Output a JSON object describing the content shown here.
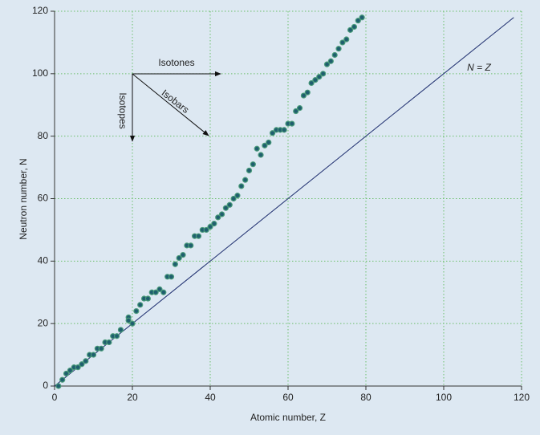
{
  "chart_data": {
    "type": "scatter",
    "x_label": "Atomic number, Z",
    "y_label": "Neutron number, N",
    "x": [
      1,
      2,
      3,
      4,
      5,
      6,
      7,
      8,
      9,
      10,
      11,
      12,
      13,
      14,
      15,
      16,
      17,
      19,
      19,
      20,
      21,
      22,
      23,
      24,
      25,
      26,
      27,
      28,
      29,
      30,
      31,
      32,
      33,
      34,
      35,
      36,
      37,
      38,
      39,
      40,
      41,
      42,
      43,
      44,
      45,
      46,
      47,
      48,
      49,
      50,
      51,
      52,
      53,
      54,
      55,
      56,
      57,
      58,
      59,
      60,
      61,
      62,
      63,
      64,
      65,
      66,
      67,
      68,
      69,
      70,
      71,
      72,
      73,
      74,
      75,
      76,
      77,
      78,
      79
    ],
    "y": [
      0,
      2,
      4,
      5,
      6,
      6,
      7,
      8,
      10,
      10,
      12,
      12,
      14,
      14,
      16,
      16,
      18,
      22,
      21,
      20,
      24,
      26,
      28,
      28,
      30,
      30,
      31,
      30,
      35,
      35,
      39,
      41,
      42,
      45,
      45,
      48,
      48,
      50,
      50,
      51,
      52,
      54,
      55,
      57,
      58,
      60,
      61,
      64,
      66,
      69,
      71,
      76,
      74,
      77,
      78,
      81,
      82,
      82,
      82,
      84,
      84,
      88,
      89,
      93,
      94,
      97,
      98,
      99,
      100,
      103,
      104,
      106,
      108,
      110,
      111,
      114,
      115,
      117,
      118
    ],
    "color": "#1f5f6e",
    "reference_line": {
      "label": "N = Z",
      "x": [
        0,
        118
      ],
      "y": [
        0,
        118
      ],
      "color": "#1a2a6c"
    },
    "annotations": [
      "Isotones",
      "Isobars",
      "Isotopes"
    ],
    "xlim": [
      0,
      120
    ],
    "ylim": [
      0,
      120
    ],
    "xticks": [
      0,
      20,
      40,
      60,
      80,
      100,
      120
    ],
    "yticks": [
      0,
      20,
      40,
      60,
      80,
      100,
      120
    ],
    "grid": true
  }
}
